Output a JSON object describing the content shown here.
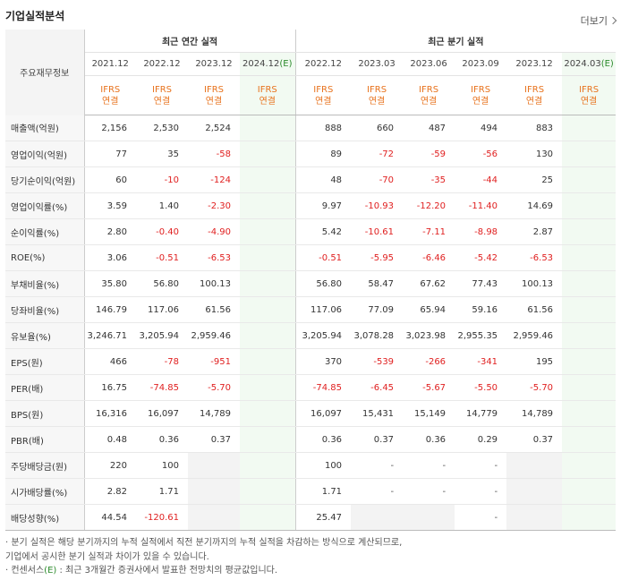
{
  "title": "기업실적분석",
  "more_label": "더보기",
  "row_header": "주요재무정보",
  "groups": {
    "annual": "최근 연간 실적",
    "quarter": "최근 분기 실적"
  },
  "periods": [
    {
      "label": "2021.12",
      "est": false
    },
    {
      "label": "2022.12",
      "est": false
    },
    {
      "label": "2023.12",
      "est": false
    },
    {
      "label": "2024.12",
      "est": true
    },
    {
      "label": "2022.12",
      "est": false
    },
    {
      "label": "2023.03",
      "est": false
    },
    {
      "label": "2023.06",
      "est": false
    },
    {
      "label": "2023.09",
      "est": false
    },
    {
      "label": "2023.12",
      "est": false
    },
    {
      "label": "2024.03",
      "est": true
    }
  ],
  "est_suffix": "(E)",
  "ifrs": "IFRS",
  "consol": "연결",
  "rows": [
    {
      "label": "매출액(억원)",
      "values": [
        "2,156",
        "2,530",
        "2,524",
        "",
        "888",
        "660",
        "487",
        "494",
        "883",
        ""
      ]
    },
    {
      "label": "영업이익(억원)",
      "values": [
        "77",
        "35",
        "-58",
        "",
        "89",
        "-72",
        "-59",
        "-56",
        "130",
        ""
      ]
    },
    {
      "label": "당기순이익(억원)",
      "values": [
        "60",
        "-10",
        "-124",
        "",
        "48",
        "-70",
        "-35",
        "-44",
        "25",
        ""
      ]
    },
    {
      "label": "영업이익률(%)",
      "values": [
        "3.59",
        "1.40",
        "-2.30",
        "",
        "9.97",
        "-10.93",
        "-12.20",
        "-11.40",
        "14.69",
        ""
      ]
    },
    {
      "label": "순이익률(%)",
      "values": [
        "2.80",
        "-0.40",
        "-4.90",
        "",
        "5.42",
        "-10.61",
        "-7.11",
        "-8.98",
        "2.87",
        ""
      ]
    },
    {
      "label": "ROE(%)",
      "values": [
        "3.06",
        "-0.51",
        "-6.53",
        "",
        "-0.51",
        "-5.95",
        "-6.46",
        "-5.42",
        "-6.53",
        ""
      ]
    },
    {
      "label": "부채비율(%)",
      "values": [
        "35.80",
        "56.80",
        "100.13",
        "",
        "56.80",
        "58.47",
        "67.62",
        "77.43",
        "100.13",
        ""
      ]
    },
    {
      "label": "당좌비율(%)",
      "values": [
        "146.79",
        "117.06",
        "61.56",
        "",
        "117.06",
        "77.09",
        "65.94",
        "59.16",
        "61.56",
        ""
      ]
    },
    {
      "label": "유보율(%)",
      "values": [
        "3,246.71",
        "3,205.94",
        "2,959.46",
        "",
        "3,205.94",
        "3,078.28",
        "3,023.98",
        "2,955.35",
        "2,959.46",
        ""
      ]
    },
    {
      "label": "EPS(원)",
      "values": [
        "466",
        "-78",
        "-951",
        "",
        "370",
        "-539",
        "-266",
        "-341",
        "195",
        ""
      ]
    },
    {
      "label": "PER(배)",
      "values": [
        "16.75",
        "-74.85",
        "-5.70",
        "",
        "-74.85",
        "-6.45",
        "-5.67",
        "-5.50",
        "-5.70",
        ""
      ]
    },
    {
      "label": "BPS(원)",
      "values": [
        "16,316",
        "16,097",
        "14,789",
        "",
        "16,097",
        "15,431",
        "15,149",
        "14,779",
        "14,789",
        ""
      ]
    },
    {
      "label": "PBR(배)",
      "values": [
        "0.48",
        "0.36",
        "0.37",
        "",
        "0.36",
        "0.37",
        "0.36",
        "0.29",
        "0.37",
        ""
      ]
    },
    {
      "label": "주당배당금(원)",
      "values": [
        "220",
        "100",
        "",
        "",
        "100",
        "-",
        "-",
        "-",
        "",
        ""
      ]
    },
    {
      "label": "시가배당률(%)",
      "values": [
        "2.82",
        "1.71",
        "",
        "",
        "1.71",
        "-",
        "-",
        "-",
        "",
        ""
      ]
    },
    {
      "label": "배당성향(%)",
      "values": [
        "44.54",
        "-120.61",
        "",
        "",
        "25.47",
        "",
        "",
        "-",
        "",
        ""
      ]
    }
  ],
  "notes": [
    "· 분기 실적은 해당 분기까지의 누적 실적에서 직전 분기까지의 누적 실적을 차감하는 방식으로 계산되므로,",
    "  기업에서 공시한 분기 실적과 차이가 있을 수 있습니다.",
    "· 컨센서스(E) : 최근 3개월간 증권사에서 발표한 전망치의 평균값입니다."
  ]
}
